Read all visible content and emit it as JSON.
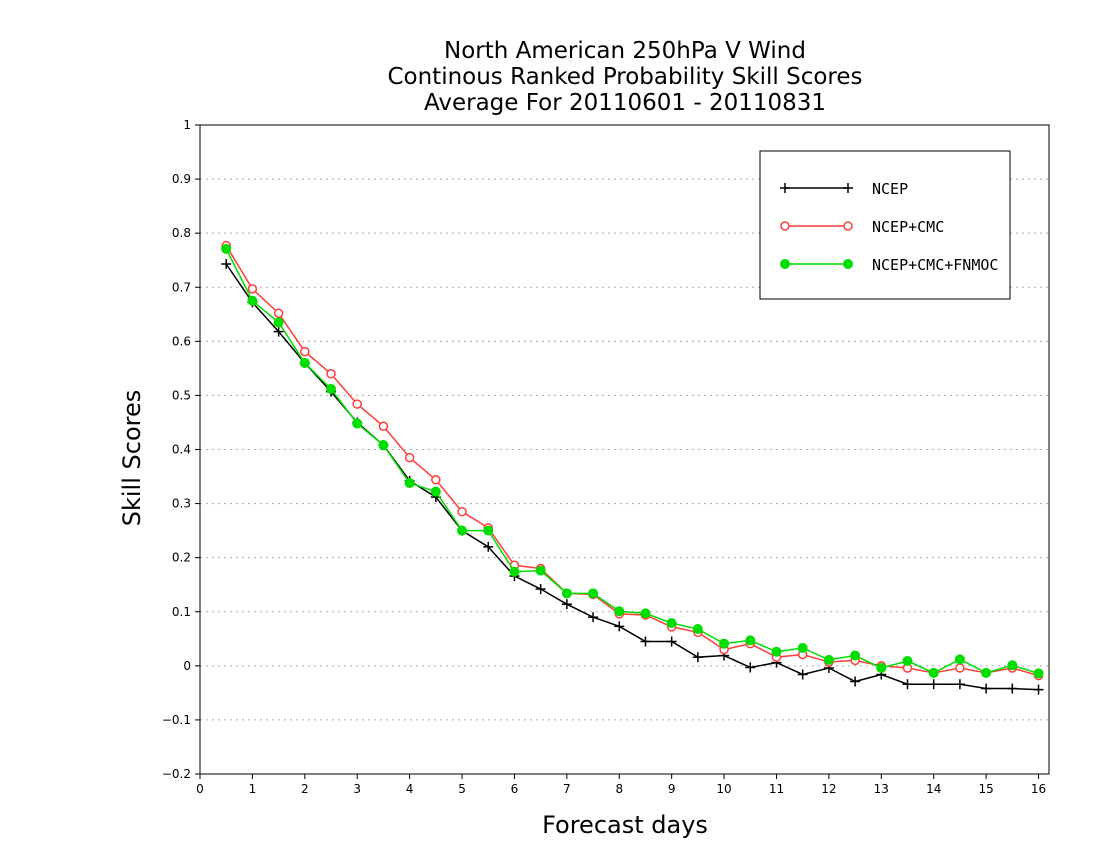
{
  "chart_data": {
    "type": "line",
    "title_lines": [
      "North American 250hPa V Wind",
      "Continous Ranked Probability Skill Scores",
      "Average For 20110601 - 20110831"
    ],
    "xlabel": "Forecast days",
    "ylabel": "Skill Scores",
    "xlim": [
      0,
      16.2
    ],
    "ylim": [
      -0.2,
      1
    ],
    "x_ticks": [
      0,
      1,
      2,
      3,
      4,
      5,
      6,
      7,
      8,
      9,
      10,
      11,
      12,
      13,
      14,
      15,
      16
    ],
    "y_ticks": [
      -0.2,
      -0.1,
      0,
      0.1,
      0.2,
      0.3,
      0.4,
      0.5,
      0.6,
      0.7,
      0.8,
      0.9,
      1
    ],
    "y_tick_labels": [
      "−0.2",
      "−0.1",
      "0",
      "0.1",
      "0.2",
      "0.3",
      "0.4",
      "0.5",
      "0.6",
      "0.7",
      "0.8",
      "0.9",
      "1"
    ],
    "grid": "horizontal dotted",
    "legend_position": "top-right",
    "x": [
      0.5,
      1,
      1.5,
      2,
      2.5,
      3,
      3.5,
      4,
      4.5,
      5,
      5.5,
      6,
      6.5,
      7,
      7.5,
      8,
      8.5,
      9,
      9.5,
      10,
      10.5,
      11,
      11.5,
      12,
      12.5,
      13,
      13.5,
      14,
      14.5,
      15,
      15.5,
      16
    ],
    "series": [
      {
        "name": "NCEP",
        "color": "#000000",
        "marker": "plus",
        "values": [
          0.743,
          0.672,
          0.618,
          0.56,
          0.507,
          0.45,
          0.408,
          0.342,
          0.312,
          0.25,
          0.22,
          0.166,
          0.142,
          0.114,
          0.09,
          0.073,
          0.045,
          0.045,
          0.016,
          0.019,
          -0.003,
          0.006,
          -0.016,
          -0.004,
          -0.029,
          -0.016,
          -0.034,
          -0.034,
          -0.034,
          -0.042,
          -0.042,
          -0.044
        ]
      },
      {
        "name": "NCEP+CMC",
        "color": "#ff3c3c",
        "marker": "open-circle",
        "values": [
          0.777,
          0.697,
          0.652,
          0.581,
          0.54,
          0.484,
          0.443,
          0.385,
          0.344,
          0.285,
          0.255,
          0.186,
          0.18,
          0.134,
          0.132,
          0.096,
          0.094,
          0.072,
          0.062,
          0.03,
          0.041,
          0.016,
          0.021,
          0.007,
          0.01,
          0.0,
          -0.004,
          -0.013,
          -0.004,
          -0.013,
          -0.004,
          -0.018
        ]
      },
      {
        "name": "NCEP+CMC+FNMOC",
        "color": "#00dd00",
        "marker": "filled-circle",
        "values": [
          0.771,
          0.675,
          0.635,
          0.56,
          0.512,
          0.448,
          0.408,
          0.338,
          0.322,
          0.25,
          0.25,
          0.174,
          0.176,
          0.134,
          0.134,
          0.101,
          0.097,
          0.079,
          0.068,
          0.041,
          0.047,
          0.026,
          0.033,
          0.011,
          0.019,
          -0.004,
          0.009,
          -0.013,
          0.012,
          -0.013,
          0.001,
          -0.014
        ]
      }
    ]
  }
}
